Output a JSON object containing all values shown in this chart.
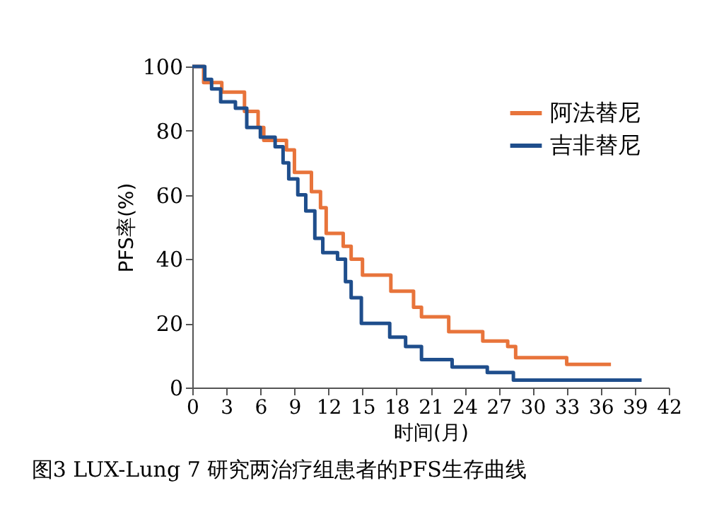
{
  "chart_data": {
    "type": "step",
    "xlabel": "时间(月)",
    "ylabel": "PFS率(%)",
    "annotations": [
      "图3 LUX-Lung 7 研究两治疗组患者的PFS生存曲线"
    ],
    "xlim": [
      0,
      42
    ],
    "xticks": [
      0,
      3,
      6,
      9,
      12,
      15,
      18,
      21,
      24,
      27,
      30,
      33,
      36,
      39,
      42
    ],
    "ylim": [
      0,
      100
    ],
    "yticks": [
      0,
      20,
      40,
      60,
      80,
      100
    ],
    "grid": false,
    "legend": "top right",
    "marker": "none",
    "line_style": "solid",
    "series": [
      {
        "name": "阿法替尼",
        "color": "#e8743b",
        "x": [
          0,
          1,
          2.6,
          4.6,
          5.8,
          6.3,
          8.3,
          9,
          10.5,
          11.3,
          11.8,
          13.3,
          14,
          15,
          17.5,
          19.5,
          20.2,
          22.6,
          25.6,
          27.8,
          28.5,
          33,
          36.9
        ],
        "values": [
          100,
          95,
          92,
          86,
          81,
          77,
          74,
          67,
          61,
          56,
          48,
          44,
          40,
          35,
          30,
          25,
          22,
          17.4,
          14.5,
          12.8,
          9.3,
          7.2,
          7.2
        ]
      },
      {
        "name": "吉非替尼",
        "color": "#1f4e8c",
        "x": [
          0,
          1.1,
          1.7,
          2.5,
          3.8,
          4.8,
          6,
          7.3,
          8,
          8.5,
          9.3,
          10,
          10.8,
          11.5,
          12.8,
          13.5,
          14,
          14.9,
          16.7,
          17.4,
          18.8,
          20.2,
          22.9,
          26,
          28.3,
          39.6
        ],
        "values": [
          100,
          96,
          93,
          89,
          87,
          81,
          78,
          75,
          70,
          65,
          60,
          55,
          46.5,
          42,
          40,
          33,
          28,
          20,
          20,
          15.7,
          12.8,
          8.7,
          6.4,
          4.7,
          2.3,
          2.3
        ]
      }
    ]
  }
}
